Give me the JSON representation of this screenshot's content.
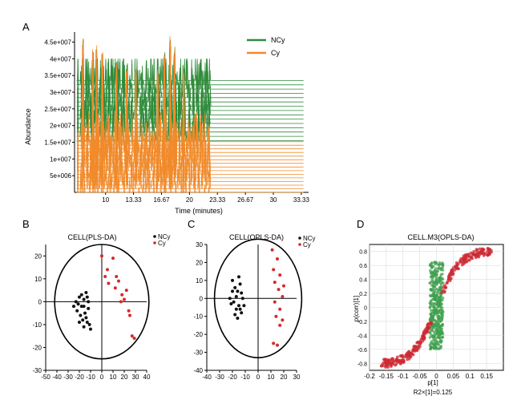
{
  "panel_labels": {
    "a": "A",
    "b": "B",
    "c": "C",
    "d": "D"
  },
  "colors": {
    "ncy": "#2e8b3a",
    "cy": "#f08a2b",
    "pca_black": "#111111",
    "pca_red": "#d42a2a",
    "splot_green": "#3f9f4d",
    "splot_red": "#cc2a33"
  },
  "chart_data": [
    {
      "panel": "A",
      "type": "line",
      "xlabel": "Time (minutes)",
      "ylabel": "Abundance",
      "x_ticks": [
        "10",
        "13.33",
        "16.67",
        "20",
        "23.33",
        "26.67",
        "30",
        "33.33"
      ],
      "y_ticks": [
        "5e+006",
        "1e+007",
        "1.5e+007",
        "2e+007",
        "2.5e+007",
        "3e+007",
        "3.5e+007",
        "4e+007",
        "4.5e+007"
      ],
      "xlim": [
        6.3,
        34.2
      ],
      "ylim": [
        0,
        48000000
      ],
      "legend": [
        "NCy",
        "Cy"
      ],
      "legend_position": "top-right",
      "series": [
        {
          "name": "NCy",
          "color": "#2e8b3a",
          "traces": 15,
          "baseline_range": [
            15500000,
            33500000
          ],
          "plateau_end": 33.6
        },
        {
          "name": "Cy",
          "color": "#f08a2b",
          "traces": 15,
          "baseline_range": [
            0,
            15200000
          ],
          "plateau_end": 33.6
        }
      ],
      "major_peaks": [
        {
          "x": 7.3,
          "y": 46500000
        },
        {
          "x": 8.5,
          "y": 43000000
        },
        {
          "x": 8.9,
          "y": 44000000
        },
        {
          "x": 9.6,
          "y": 42000000
        },
        {
          "x": 11.3,
          "y": 39500000
        },
        {
          "x": 12.5,
          "y": 37000000
        },
        {
          "x": 13.6,
          "y": 37000000
        },
        {
          "x": 16.2,
          "y": 37000000
        },
        {
          "x": 17.0,
          "y": 42000000
        },
        {
          "x": 17.7,
          "y": 47000000
        },
        {
          "x": 18.2,
          "y": 44000000
        },
        {
          "x": 19.3,
          "y": 37500000
        }
      ]
    },
    {
      "panel": "B",
      "type": "scatter",
      "title": "CELL(PLS-DA)",
      "xlim": [
        -50,
        40
      ],
      "ylim": [
        -30,
        25
      ],
      "x_ticks": [
        "-50",
        "-40",
        "-30",
        "-20",
        "-10",
        "0",
        "10",
        "20",
        "30",
        "40"
      ],
      "y_ticks": [
        "-30",
        "-20",
        "-10",
        "0",
        "10",
        "20"
      ],
      "legend": [
        "NCy",
        "Cy"
      ],
      "legend_position": "top-right",
      "ellipse": {
        "rx": 42,
        "ry": 25
      },
      "series": [
        {
          "name": "NCy",
          "color": "#111111",
          "points": [
            [
              -20,
              2
            ],
            [
              -18,
              -2
            ],
            [
              -16,
              1
            ],
            [
              -14,
              4
            ],
            [
              -12,
              0
            ],
            [
              -22,
              -4
            ],
            [
              -19,
              -6
            ],
            [
              -17,
              -8
            ],
            [
              -15,
              -5
            ],
            [
              -13,
              -9
            ],
            [
              -11,
              -10
            ],
            [
              -21,
              -1
            ],
            [
              -16,
              -11
            ],
            [
              -23,
              0
            ],
            [
              -18,
              3
            ],
            [
              -14,
              -7
            ],
            [
              -10,
              -12
            ],
            [
              -20,
              -9
            ],
            [
              -12,
              -3
            ],
            [
              -16,
              -2
            ],
            [
              -25,
              -2
            ],
            [
              -13,
              2
            ]
          ]
        },
        {
          "name": "Cy",
          "color": "#d42a2a",
          "points": [
            [
              0,
              20
            ],
            [
              5,
              14
            ],
            [
              10,
              19
            ],
            [
              13,
              11
            ],
            [
              12,
              6
            ],
            [
              15,
              9
            ],
            [
              18,
              3
            ],
            [
              20,
              1
            ],
            [
              22,
              5
            ],
            [
              24,
              -4
            ],
            [
              25,
              -6
            ],
            [
              27,
              -15
            ],
            [
              29,
              -16
            ],
            [
              6,
              8
            ],
            [
              17,
              0
            ],
            [
              3,
              11
            ]
          ]
        }
      ]
    },
    {
      "panel": "C",
      "type": "scatter",
      "title": "CELL(OPLS-DA)",
      "xlim": [
        -40,
        30
      ],
      "ylim": [
        -40,
        30
      ],
      "x_ticks": [
        "-40",
        "-30",
        "-20",
        "-10",
        "0",
        "10",
        "20",
        "30"
      ],
      "y_ticks": [
        "-40",
        "-30",
        "-20",
        "-10",
        "0",
        "10",
        "20",
        "30"
      ],
      "legend": [
        "NCy",
        "Cy"
      ],
      "legend_position": "top-right",
      "ellipse": {
        "rx": 34,
        "ry": 33
      },
      "series": [
        {
          "name": "NCy",
          "color": "#111111",
          "points": [
            [
              -20,
              10
            ],
            [
              -18,
              6
            ],
            [
              -16,
              4
            ],
            [
              -14,
              8
            ],
            [
              -17,
              1
            ],
            [
              -19,
              -2
            ],
            [
              -15,
              -4
            ],
            [
              -13,
              -8
            ],
            [
              -21,
              -3
            ],
            [
              -16,
              -11
            ],
            [
              -12,
              0
            ],
            [
              -14,
              -6
            ],
            [
              -18,
              -9
            ],
            [
              -20,
              4
            ],
            [
              -15,
              12
            ],
            [
              -13,
              3
            ],
            [
              -11,
              -4
            ],
            [
              -22,
              0
            ],
            [
              -17,
              -6
            ]
          ]
        },
        {
          "name": "Cy",
          "color": "#d42a2a",
          "points": [
            [
              11,
              27
            ],
            [
              15,
              22
            ],
            [
              12,
              16
            ],
            [
              17,
              13
            ],
            [
              13,
              9
            ],
            [
              16,
              5
            ],
            [
              19,
              1
            ],
            [
              13,
              -2
            ],
            [
              17,
              -6
            ],
            [
              14,
              -10
            ],
            [
              19,
              -12
            ],
            [
              12,
              -25
            ],
            [
              15,
              -26
            ],
            [
              17,
              -15
            ],
            [
              20,
              7
            ]
          ]
        }
      ]
    },
    {
      "panel": "D",
      "type": "scatter",
      "title": "CELL.M3(OPLS-DA)",
      "xlabel": "p[1]",
      "xlabel_note": "R2×[1]=0.125",
      "ylabel": "p(corr)[1]",
      "xlim": [
        -0.2,
        0.2
      ],
      "ylim": [
        -0.9,
        0.9
      ],
      "x_ticks": [
        "-0.2",
        "-0.15",
        "-0.1",
        "-0.05",
        "0",
        "0.05",
        "0.1",
        "0.15"
      ],
      "y_ticks": [
        "-0.8",
        "-0.6",
        "-0.4",
        "-0.2",
        "0",
        "0.2",
        "0.4",
        "0.6",
        "0.8"
      ],
      "grid": true,
      "distribution": "sigmoid band, red where |p(corr)| > 0.2, green near zero",
      "series": [
        {
          "name": "",
          "color": "#3f9f4d",
          "shape": "vertical band near x=0",
          "x_range": [
            -0.02,
            0.02
          ],
          "y_range": [
            -0.6,
            0.65
          ]
        },
        {
          "name": "",
          "color": "#cc2a33",
          "shape": "diagonal band",
          "x_range": [
            -0.16,
            0.17
          ],
          "y_range": [
            -0.78,
            0.82
          ]
        }
      ]
    }
  ]
}
